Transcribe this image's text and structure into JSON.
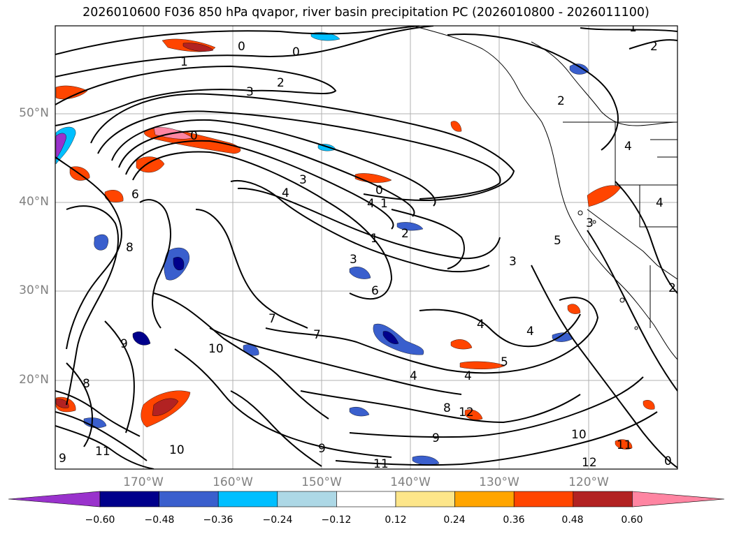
{
  "title": "2026010600 F036 850 hPa qvapor, river basin precipitation PC (2026010800 - 2026011100)",
  "lat_labels": [
    "50°N",
    "40°N",
    "30°N",
    "20°N"
  ],
  "lon_labels": [
    "170°W",
    "160°W",
    "150°W",
    "140°W",
    "130°W",
    "120°W"
  ],
  "colorbar": {
    "ticks": [
      "−0.60",
      "−0.48",
      "−0.36",
      "−0.24",
      "−0.12",
      "0.12",
      "0.24",
      "0.36",
      "0.48",
      "0.60"
    ],
    "colors": [
      "#9932cc",
      "#00008b",
      "#3a5fcd",
      "#00bfff",
      "#add8e6",
      "#ffffff",
      "#fde68a",
      "#ffa500",
      "#ff4500",
      "#b22222",
      "#ff85a2"
    ]
  },
  "contour_labels": [
    "1",
    "0",
    "0",
    "2",
    "1",
    "2",
    "3",
    "2",
    "0",
    "3",
    "4",
    "6",
    "0",
    "1",
    "4",
    "2",
    "1",
    "8",
    "3",
    "6",
    "3",
    "7",
    "4",
    "4",
    "7",
    "10",
    "9",
    "4",
    "4",
    "5",
    "8",
    "12",
    "9",
    "10",
    "11",
    "12",
    "9",
    "11",
    "8",
    "11",
    "10",
    "9",
    "0",
    "3",
    "4",
    "5",
    "4",
    "2"
  ],
  "map_features": [
    "coastline",
    "country-borders",
    "state-borders",
    "lat-lon-grid"
  ]
}
